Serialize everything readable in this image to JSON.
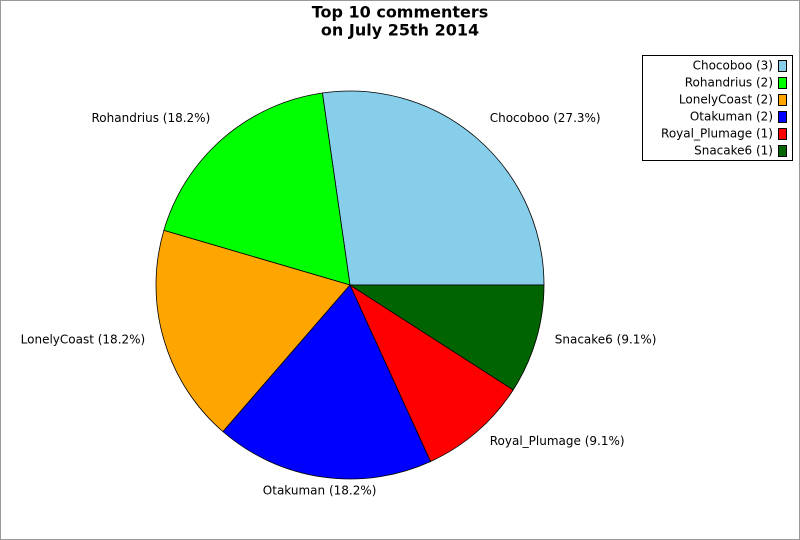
{
  "chart_data": {
    "type": "pie",
    "title": [
      "Top 10 commenters",
      "on July 25th 2014"
    ],
    "categories": [
      "Chocoboo",
      "Rohandrius",
      "LonelyCoast",
      "Otakuman",
      "Royal_Plumage",
      "Snacake6"
    ],
    "values": [
      3,
      2,
      2,
      2,
      1,
      1
    ],
    "value_labels": [
      "Chocoboo (3)",
      "Rohandrius (2)",
      "LonelyCoast (2)",
      "Otakuman (2)",
      "Royal_Plumage (1)",
      "Snacake6 (1)"
    ],
    "slice_labels": [
      "Chocoboo (27.3%)",
      "Rohandrius (18.2%)",
      "LonelyCoast (18.2%)",
      "Otakuman (18.2%)",
      "Royal_Plumage (9.1%)",
      "Snacake6 (9.1%)"
    ],
    "colors": [
      "#87ceeb",
      "#00ff00",
      "#ffa500",
      "#0000ff",
      "#ff0000",
      "#006400"
    ],
    "legend": "upper right"
  }
}
